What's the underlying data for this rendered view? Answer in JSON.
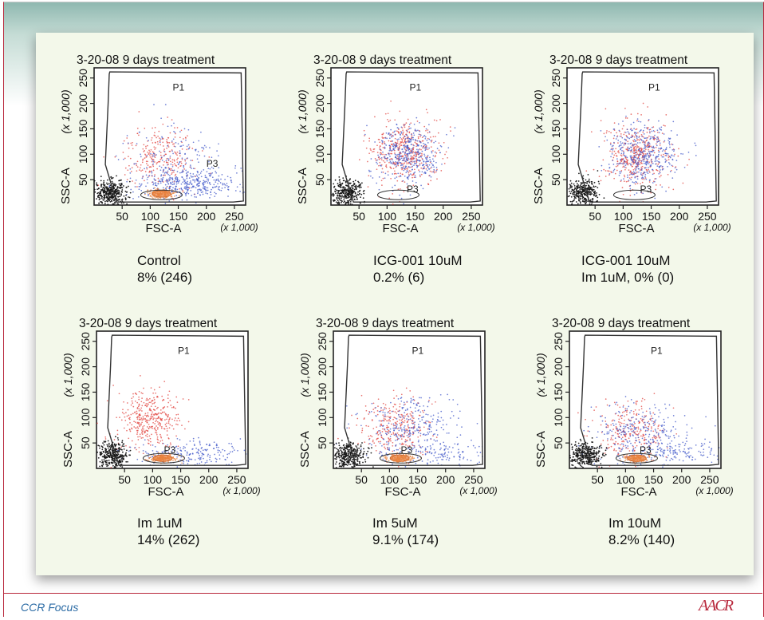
{
  "footer": {
    "journal": "CCR Focus",
    "logo": "AACR"
  },
  "chart_data": [
    {
      "type": "scatter",
      "title": "3-20-08 9 days treatment",
      "xlabel": "FSC-A",
      "x_unit": "(x 1,000)",
      "ylabel": "SSC-A",
      "y_unit": "(x 1,000)",
      "xlim": [
        0,
        270
      ],
      "ylim": [
        0,
        270
      ],
      "xticks": [
        50,
        100,
        150,
        200,
        250
      ],
      "yticks": [
        50,
        100,
        150,
        200,
        250
      ],
      "gates": [
        "P1",
        "P3"
      ],
      "gate_labels": {
        "P1": [
          140,
          225
        ],
        "P3": [
          200,
          75
        ]
      },
      "caption": [
        "Control",
        "8% (246)"
      ],
      "populations": [
        {
          "color": "red",
          "cx": 115,
          "cy": 95,
          "sx": 32,
          "sy": 30,
          "n": 260
        },
        {
          "color": "blue",
          "cx": 175,
          "cy": 40,
          "sx": 55,
          "sy": 14,
          "n": 380
        },
        {
          "color": "blue",
          "cx": 140,
          "cy": 90,
          "sx": 45,
          "sy": 35,
          "n": 180
        },
        {
          "color": "orange",
          "cx": 120,
          "cy": 22,
          "sx": 12,
          "sy": 4,
          "n": 180
        },
        {
          "color": "black",
          "cx": 28,
          "cy": 25,
          "sx": 14,
          "sy": 13,
          "n": 360
        }
      ]
    },
    {
      "type": "scatter",
      "title": "3-20-08 9 days treatment",
      "xlabel": "FSC-A",
      "x_unit": "(x 1,000)",
      "ylabel": "SSC-A",
      "y_unit": "(x 1,000)",
      "xlim": [
        0,
        270
      ],
      "ylim": [
        0,
        270
      ],
      "xticks": [
        50,
        100,
        150,
        200,
        250
      ],
      "yticks": [
        50,
        100,
        150,
        200,
        250
      ],
      "gates": [
        "P1",
        "P3"
      ],
      "gate_labels": {
        "P1": [
          140,
          225
        ],
        "P3": [
          135,
          25
        ]
      },
      "caption": [
        "ICG-001 10uM",
        "0.2% (6)"
      ],
      "populations": [
        {
          "color": "red",
          "cx": 130,
          "cy": 105,
          "sx": 32,
          "sy": 32,
          "n": 420
        },
        {
          "color": "blue",
          "cx": 135,
          "cy": 100,
          "sx": 30,
          "sy": 30,
          "n": 420
        },
        {
          "color": "black",
          "cx": 28,
          "cy": 25,
          "sx": 14,
          "sy": 13,
          "n": 320
        }
      ]
    },
    {
      "type": "scatter",
      "title": "3-20-08 9 days treatment",
      "xlabel": "FSC-A",
      "x_unit": "(x 1,000)",
      "ylabel": "SSC-A",
      "y_unit": "(x 1,000)",
      "xlim": [
        0,
        270
      ],
      "ylim": [
        0,
        270
      ],
      "xticks": [
        50,
        100,
        150,
        200,
        250
      ],
      "yticks": [
        50,
        100,
        150,
        200,
        250
      ],
      "gates": [
        "P1",
        "P3"
      ],
      "gate_labels": {
        "P1": [
          145,
          225
        ],
        "P3": [
          130,
          25
        ]
      },
      "caption": [
        "ICG-001 10uM",
        "Im  1uM, 0% (0)"
      ],
      "populations": [
        {
          "color": "red",
          "cx": 125,
          "cy": 100,
          "sx": 30,
          "sy": 32,
          "n": 420
        },
        {
          "color": "blue",
          "cx": 135,
          "cy": 100,
          "sx": 32,
          "sy": 30,
          "n": 440
        },
        {
          "color": "black",
          "cx": 28,
          "cy": 25,
          "sx": 14,
          "sy": 13,
          "n": 320
        }
      ]
    },
    {
      "type": "scatter",
      "title": "3-20-08 9 days treatment",
      "xlabel": "FSC-A",
      "x_unit": "(x 1,000)",
      "ylabel": "SSC-A",
      "y_unit": "(x 1,000)",
      "xlim": [
        0,
        270
      ],
      "ylim": [
        0,
        270
      ],
      "xticks": [
        50,
        100,
        150,
        200,
        250
      ],
      "yticks": [
        50,
        100,
        150,
        200,
        250
      ],
      "gates": [
        "P1",
        "P3"
      ],
      "gate_labels": {
        "P1": [
          145,
          225
        ],
        "P3": [
          120,
          30
        ]
      },
      "caption": [
        "Im 1uM",
        "14% (262)"
      ],
      "populations": [
        {
          "color": "red",
          "cx": 95,
          "cy": 95,
          "sx": 28,
          "sy": 30,
          "n": 380
        },
        {
          "color": "blue",
          "cx": 175,
          "cy": 30,
          "sx": 55,
          "sy": 12,
          "n": 220
        },
        {
          "color": "orange",
          "cx": 118,
          "cy": 20,
          "sx": 12,
          "sy": 4,
          "n": 160
        },
        {
          "color": "black",
          "cx": 28,
          "cy": 25,
          "sx": 14,
          "sy": 13,
          "n": 340
        }
      ]
    },
    {
      "type": "scatter",
      "title": "3-20-08 9 days treatment",
      "xlabel": "FSC-A",
      "x_unit": "(x 1,000)",
      "ylabel": "SSC-A",
      "y_unit": "(x 1,000)",
      "xlim": [
        0,
        270
      ],
      "ylim": [
        0,
        270
      ],
      "xticks": [
        50,
        100,
        150,
        200,
        250
      ],
      "yticks": [
        50,
        100,
        150,
        200,
        250
      ],
      "gates": [
        "P1",
        "P3"
      ],
      "gate_labels": {
        "P1": [
          140,
          225
        ],
        "P3": [
          120,
          30
        ]
      },
      "caption": [
        "Im 5uM",
        "9.1% (174)"
      ],
      "populations": [
        {
          "color": "red",
          "cx": 110,
          "cy": 85,
          "sx": 32,
          "sy": 30,
          "n": 280
        },
        {
          "color": "blue",
          "cx": 135,
          "cy": 80,
          "sx": 40,
          "sy": 32,
          "n": 300
        },
        {
          "color": "blue",
          "cx": 185,
          "cy": 28,
          "sx": 50,
          "sy": 10,
          "n": 120
        },
        {
          "color": "orange",
          "cx": 118,
          "cy": 20,
          "sx": 12,
          "sy": 4,
          "n": 150
        },
        {
          "color": "black",
          "cx": 28,
          "cy": 25,
          "sx": 14,
          "sy": 13,
          "n": 340
        }
      ]
    },
    {
      "type": "scatter",
      "title": "3-20-08 9 days treatment",
      "xlabel": "FSC-A",
      "x_unit": "(x 1,000)",
      "ylabel": "SSC-A",
      "y_unit": "(x 1,000)",
      "xlim": [
        0,
        270
      ],
      "ylim": [
        0,
        270
      ],
      "xticks": [
        50,
        100,
        150,
        200,
        250
      ],
      "yticks": [
        50,
        100,
        150,
        200,
        250
      ],
      "gates": [
        "P1",
        "P3"
      ],
      "gate_labels": {
        "P1": [
          145,
          225
        ],
        "P3": [
          125,
          30
        ]
      },
      "caption": [
        "Im 10uM",
        "8.2% (140)"
      ],
      "populations": [
        {
          "color": "red",
          "cx": 110,
          "cy": 75,
          "sx": 32,
          "sy": 30,
          "n": 250
        },
        {
          "color": "blue",
          "cx": 130,
          "cy": 70,
          "sx": 45,
          "sy": 30,
          "n": 300
        },
        {
          "color": "blue",
          "cx": 190,
          "cy": 30,
          "sx": 50,
          "sy": 12,
          "n": 120
        },
        {
          "color": "orange",
          "cx": 120,
          "cy": 20,
          "sx": 12,
          "sy": 4,
          "n": 130
        },
        {
          "color": "black",
          "cx": 28,
          "cy": 25,
          "sx": 14,
          "sy": 13,
          "n": 340
        }
      ]
    }
  ]
}
